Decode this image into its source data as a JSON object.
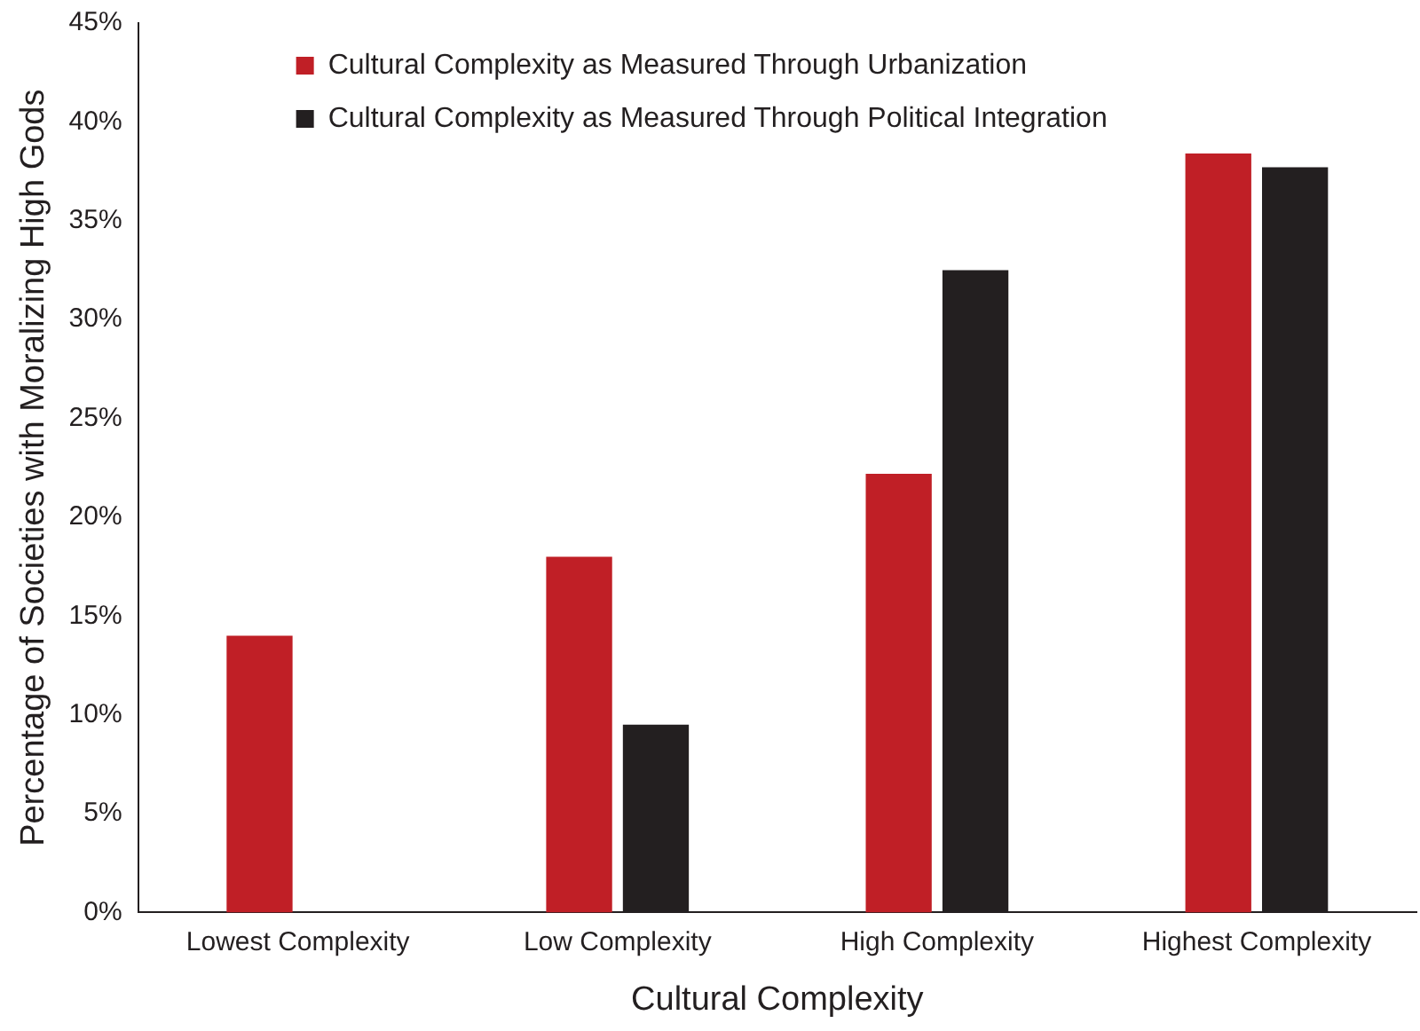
{
  "chart_data": {
    "type": "bar",
    "xlabel": "Cultural Complexity",
    "ylabel": "Percentage of Societies with Moralizing High Gods",
    "categories": [
      "Lowest Complexity",
      "Low Complexity",
      "High Complexity",
      "Highest Complexity"
    ],
    "series": [
      {
        "name": "Cultural Complexity as Measured Through Urbanization",
        "color": "#c01f26",
        "values": [
          14,
          18,
          22.2,
          38.4
        ]
      },
      {
        "name": "Cultural Complexity as Measured Through Political Integration",
        "color": "#231f20",
        "values": [
          null,
          9.5,
          32.5,
          37.7
        ]
      }
    ],
    "ylim": [
      0,
      45
    ],
    "yticks": [
      {
        "value": 0,
        "label": "0%"
      },
      {
        "value": 5,
        "label": "5%"
      },
      {
        "value": 10,
        "label": "10%"
      },
      {
        "value": 15,
        "label": "15%"
      },
      {
        "value": 20,
        "label": "20%"
      },
      {
        "value": 25,
        "label": "25%"
      },
      {
        "value": 30,
        "label": "30%"
      },
      {
        "value": 35,
        "label": "35%"
      },
      {
        "value": 40,
        "label": "40%"
      },
      {
        "value": 45,
        "label": "45%"
      }
    ],
    "grid": false,
    "legend": "top left"
  }
}
